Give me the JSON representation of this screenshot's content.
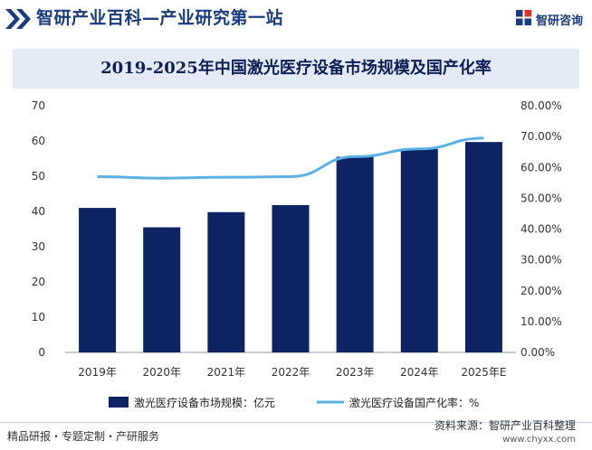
{
  "header": {
    "title": "智研产业百科—产业研究第一站",
    "brand": "智研咨询"
  },
  "chart_data": {
    "type": "bar",
    "title": "2019-2025年中国激光医疗设备市场规模及国产化率",
    "categories": [
      "2019年",
      "2020年",
      "2021年",
      "2022年",
      "2023年",
      "2024年",
      "2025年E"
    ],
    "series": [
      {
        "name": "激光医疗设备市场规模：亿元",
        "type": "bar",
        "axis": "left",
        "color": "#0d2363",
        "values": [
          41.0,
          35.5,
          39.8,
          41.8,
          55.5,
          57.7,
          59.7
        ]
      },
      {
        "name": "激光医疗设备国产化率：%",
        "type": "line",
        "axis": "right",
        "color": "#5ab1e6",
        "values": [
          57.0,
          56.5,
          56.8,
          57.0,
          63.5,
          66.0,
          69.5
        ]
      }
    ],
    "ylim_left": [
      0,
      70
    ],
    "yticks_left": [
      "0",
      "10",
      "20",
      "30",
      "40",
      "50",
      "60",
      "70"
    ],
    "ylim_right": [
      0,
      80
    ],
    "yticks_right": [
      "0.00%",
      "10.00%",
      "20.00%",
      "30.00%",
      "40.00%",
      "50.00%",
      "60.00%",
      "70.00%",
      "80.00%"
    ],
    "grid": false,
    "legend_position": "bottom"
  },
  "footer": {
    "left": "精品研报・专题定制・产研服务",
    "source": "资料来源：智研产业百科整理",
    "url": "www.chyxx.com"
  }
}
